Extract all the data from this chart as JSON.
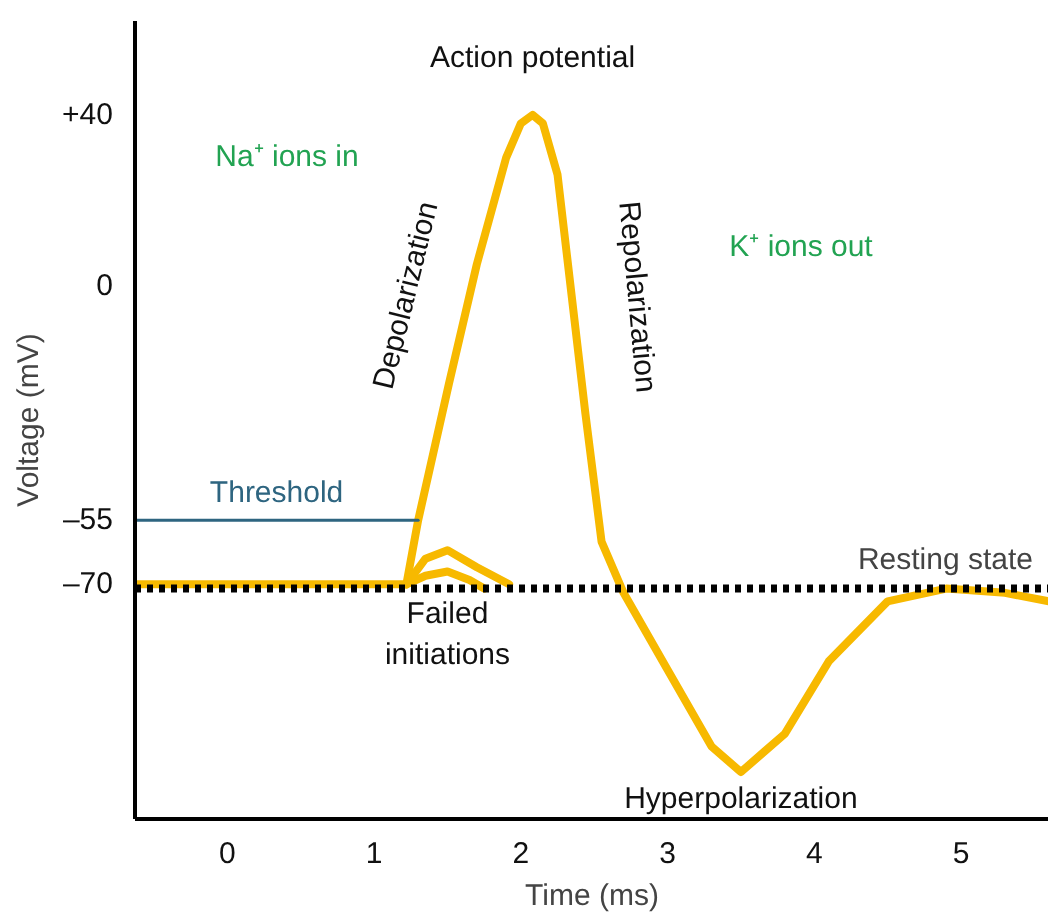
{
  "chart_data": {
    "type": "line",
    "xlabel": "Time (ms)",
    "ylabel": "Voltage (mV)",
    "xlim": [
      -0.63,
      5.6
    ],
    "ylim": [
      -125,
      62
    ],
    "xticks": [
      0,
      1,
      2,
      3,
      4,
      5
    ],
    "yticks": [
      {
        "value": 40,
        "label": "+40"
      },
      0,
      {
        "value": -55,
        "label": "–55"
      },
      {
        "value": -70,
        "label": "–70"
      }
    ],
    "grid": false,
    "marker": "none",
    "line_style": "solid",
    "series": [
      {
        "color": "#f7b900",
        "x": [
          -0.63,
          1.22,
          1.3,
          1.51,
          1.7,
          1.9,
          2.0,
          2.08,
          2.15,
          2.25,
          2.44,
          2.55,
          2.7,
          3.0,
          3.3,
          3.5,
          3.8,
          4.1,
          4.5,
          4.9,
          5.3,
          5.6
        ],
        "values": [
          -70,
          -70,
          -55,
          -23,
          5,
          30,
          38,
          40,
          38,
          26,
          -30,
          -60,
          -72,
          -90,
          -108,
          -114,
          -105,
          -88,
          -74,
          -71,
          -72,
          -74
        ]
      },
      {
        "color": "#f7b900",
        "x": [
          1.22,
          1.35,
          1.5,
          1.7,
          1.92
        ],
        "values": [
          -70,
          -64,
          -62,
          -66,
          -70
        ]
      },
      {
        "color": "#f7b900",
        "x": [
          1.22,
          1.35,
          1.5,
          1.65,
          1.75
        ],
        "values": [
          -70,
          -68,
          -67,
          -69,
          -71
        ]
      },
      {
        "name": "Threshold",
        "color": "#2e6580",
        "x": [
          -0.63,
          1.3
        ],
        "values": [
          -55,
          -55
        ]
      }
    ],
    "ref_lines": [
      {
        "axis": "y",
        "value": -71,
        "label": "Resting state",
        "color": "#000000",
        "line_style": "dotted"
      }
    ],
    "annotations": [
      {
        "text": "Action potential",
        "x": 2.08,
        "y": 40
      },
      {
        "text": "Depolarization",
        "x": 1.6,
        "y": 0
      },
      "Repolarization",
      "Na⁺ ions in",
      "K⁺ ions out",
      {
        "text": "Failed initiations",
        "x": 1.5,
        "y": -66
      },
      {
        "text": "Hyperpolarization",
        "x": 3.5,
        "y": -114
      }
    ]
  }
}
